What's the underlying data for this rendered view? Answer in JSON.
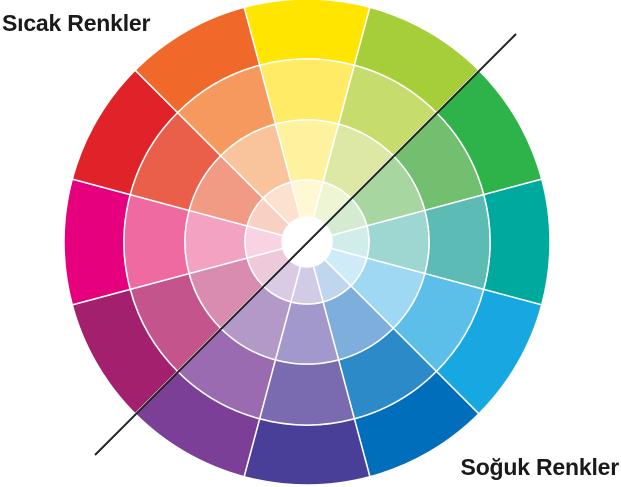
{
  "labels": {
    "warm": "Sıcak Renkler",
    "cool": "Soğuk Renkler"
  },
  "wheel": {
    "rings": [
      {
        "name": "outer",
        "colors": [
          "#FFE500",
          "#A6CE39",
          "#2DB34A",
          "#00A99D",
          "#18A8E1",
          "#006EBA",
          "#4A3F98",
          "#7B3F98",
          "#A3206E",
          "#E6007E",
          "#E02328",
          "#F0682A"
        ]
      },
      {
        "name": "second",
        "colors": [
          "#FFEB66",
          "#C6DD6E",
          "#72BF6F",
          "#5CBCB5",
          "#5CBFEA",
          "#2D8AC9",
          "#7A6BB0",
          "#9A6BB0",
          "#C4558C",
          "#EF6AA0",
          "#E95F4A",
          "#F5995E"
        ]
      },
      {
        "name": "third",
        "colors": [
          "#FFF29F",
          "#DCE8A4",
          "#A8D6A0",
          "#9ED6D1",
          "#9ED8F3",
          "#7EAEDB",
          "#A398CB",
          "#B299C8",
          "#D98BB0",
          "#F4A2C2",
          "#F19A84",
          "#F9C49B"
        ]
      },
      {
        "name": "inner",
        "colors": [
          "#FFF8D2",
          "#EEF5D4",
          "#D5EBD1",
          "#D1EDEA",
          "#CFEBF9",
          "#BFD6EE",
          "#D1CBE6",
          "#D9CBE3",
          "#EDC9DA",
          "#F9D3E2",
          "#F8D0C4",
          "#FCE2CE"
        ]
      }
    ],
    "center_color": "#FFFFFF",
    "ring_border_color": "#FFFFFF",
    "divider_color": "#222222"
  }
}
